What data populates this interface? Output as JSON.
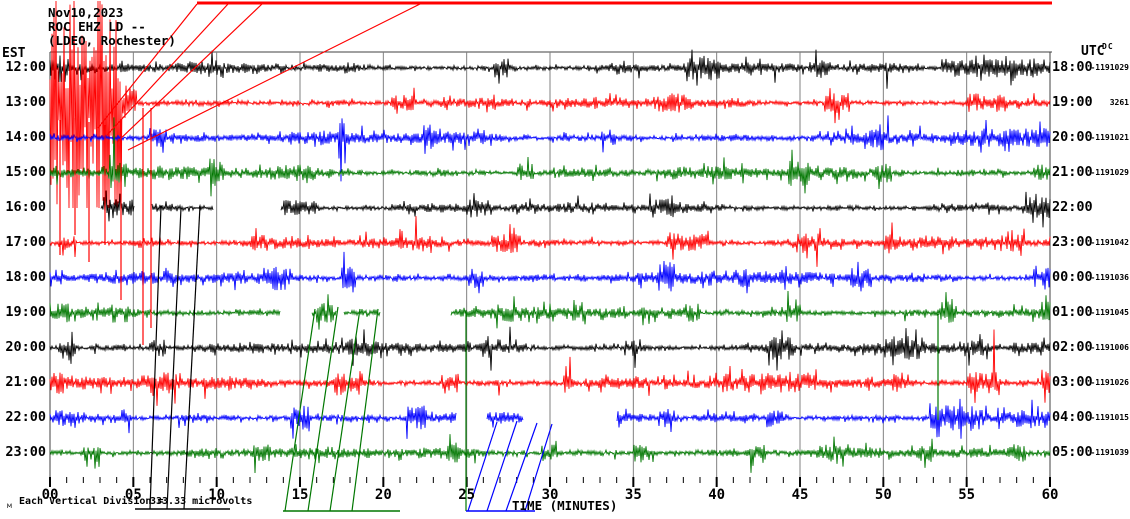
{
  "header": {
    "date": "Nov10,2023",
    "station_line": "ROC EHZ LD --",
    "network_line": "(LDEO, Rochester)"
  },
  "left_axis": {
    "timezone": "EST"
  },
  "right_axis": {
    "timezone": "UTC",
    "dc_header": "DC"
  },
  "x_axis": {
    "title": "TIME (MINUTES)",
    "major_tick_labels": [
      "00",
      "05",
      "10",
      "15",
      "20",
      "25",
      "30",
      "35",
      "40",
      "45",
      "50",
      "55",
      "60"
    ]
  },
  "footer": {
    "scale_label": "Each Vertical Division =",
    "scale_value": "333.33 microvolts",
    "watermark": "м"
  },
  "colors": {
    "black": "#000000",
    "red": "#ff0000",
    "blue": "#0000ff",
    "green": "#007700",
    "grid": "#808080",
    "border": "#404040"
  },
  "chart_data": {
    "type": "line",
    "title": "ROC EHZ LD -- helicorder, (LDEO, Rochester), Nov10,2023",
    "xlabel": "TIME (MINUTES)",
    "x_range_minutes": [
      0,
      60
    ],
    "x_major_step": 5,
    "x_minor_step": 1,
    "grid": "vertical-5min",
    "vertical_division_microvolts": "333.33",
    "rows": [
      {
        "est": "12:00",
        "utc": "18:00",
        "dc": "-1191029",
        "color": "#000000",
        "base_amp": 5,
        "bursts": [
          [
            0,
            1.3,
            15
          ],
          [
            9.5,
            10.2,
            9
          ],
          [
            26.6,
            27.6,
            10
          ],
          [
            38,
            40.2,
            12
          ],
          [
            45.8,
            46.8,
            10
          ],
          [
            53.5,
            60,
            9
          ]
        ],
        "gaps": []
      },
      {
        "est": "13:00",
        "utc": "19:00",
        "dc": "3261",
        "color": "#ff0000",
        "base_amp": 5,
        "bursts": [
          [
            4.3,
            5.2,
            18
          ],
          [
            20.5,
            22,
            8
          ],
          [
            36,
            38.5,
            9
          ],
          [
            46.5,
            48,
            11
          ],
          [
            55,
            57.5,
            9
          ]
        ],
        "gaps": [],
        "event": {
          "start_min": 0,
          "end_min": 4.3,
          "amp": 110,
          "max_below": 105,
          "clipped_at_top": true
        }
      },
      {
        "est": "14:00",
        "utc": "20:00",
        "dc": "-1191021",
        "color": "#0000ff",
        "base_amp": 6,
        "bursts": [
          [
            6,
            7,
            10
          ],
          [
            17.3,
            17.7,
            26
          ],
          [
            22.4,
            23.2,
            13
          ],
          [
            33,
            34,
            9
          ],
          [
            48.8,
            50,
            13
          ],
          [
            54,
            60,
            9
          ]
        ],
        "gaps": []
      },
      {
        "est": "15:00",
        "utc": "21:00",
        "dc": "-1191029",
        "color": "#007700",
        "base_amp": 6,
        "bursts": [
          [
            3.5,
            4.6,
            12
          ],
          [
            9.6,
            10.4,
            16
          ],
          [
            13,
            16,
            8
          ],
          [
            28,
            29,
            10
          ],
          [
            44.3,
            45.6,
            13
          ],
          [
            49.5,
            50.5,
            10
          ],
          [
            59,
            60,
            10
          ]
        ],
        "gaps": []
      },
      {
        "est": "16:00",
        "utc": "22:00",
        "dc": "",
        "color": "#000000",
        "base_amp": 5,
        "bursts": [
          [
            3.2,
            5,
            8
          ],
          [
            14,
            16,
            8
          ],
          [
            25,
            26.5,
            9
          ],
          [
            36,
            37.5,
            10
          ],
          [
            58.5,
            60,
            11
          ]
        ],
        "gaps": [
          [
            0,
            3.0
          ],
          [
            5.1,
            6.1
          ],
          [
            9.8,
            13.8
          ]
        ]
      },
      {
        "est": "17:00",
        "utc": "23:00",
        "dc": "-1191042",
        "color": "#ff0000",
        "base_amp": 5,
        "bursts": [
          [
            0.5,
            1.5,
            8
          ],
          [
            12,
            13,
            8
          ],
          [
            21,
            21.8,
            9
          ],
          [
            26.5,
            28.2,
            10
          ],
          [
            37,
            39.5,
            10
          ],
          [
            44.8,
            46.2,
            10
          ],
          [
            50,
            51,
            8
          ],
          [
            57,
            58.5,
            9
          ]
        ],
        "gaps": []
      },
      {
        "est": "18:00",
        "utc": "00:00",
        "dc": "-1191036",
        "color": "#0000ff",
        "base_amp": 6,
        "bursts": [
          [
            0,
            1,
            9
          ],
          [
            13,
            14.2,
            12
          ],
          [
            17.5,
            18.3,
            13
          ],
          [
            25,
            26,
            9
          ],
          [
            36.5,
            37.6,
            14
          ],
          [
            41,
            42,
            9
          ],
          [
            48,
            49.3,
            11
          ],
          [
            59,
            60,
            13
          ]
        ],
        "gaps": []
      },
      {
        "est": "19:00",
        "utc": "01:00",
        "dc": "-1191045",
        "color": "#007700",
        "base_amp": 6,
        "bursts": [
          [
            0,
            1.2,
            10
          ],
          [
            16,
            17,
            11
          ],
          [
            26.8,
            28,
            9
          ],
          [
            31,
            32.2,
            12
          ],
          [
            38,
            39,
            9
          ],
          [
            44,
            45,
            9
          ],
          [
            53.4,
            54.4,
            15
          ],
          [
            59.3,
            60,
            12
          ]
        ],
        "gaps": [
          [
            13.8,
            15.7
          ],
          [
            17.2,
            17.6
          ],
          [
            19.8,
            24.0
          ]
        ]
      },
      {
        "est": "20:00",
        "utc": "02:00",
        "dc": "-1191006",
        "color": "#000000",
        "base_amp": 6,
        "bursts": [
          [
            0.5,
            1.5,
            9
          ],
          [
            6,
            7,
            9
          ],
          [
            18,
            19.2,
            10
          ],
          [
            25.5,
            27,
            10
          ],
          [
            34.5,
            35.5,
            9
          ],
          [
            43,
            44.6,
            12
          ],
          [
            50,
            52,
            12
          ],
          [
            55,
            56,
            9
          ]
        ],
        "gaps": []
      },
      {
        "est": "21:00",
        "utc": "03:00",
        "dc": "-1191026",
        "color": "#ff0000",
        "base_amp": 6,
        "bursts": [
          [
            0,
            0.8,
            12
          ],
          [
            6,
            7.6,
            12
          ],
          [
            17,
            18.6,
            12
          ],
          [
            23.5,
            24.5,
            10
          ],
          [
            30.8,
            31.4,
            15
          ],
          [
            40,
            46,
            10
          ],
          [
            50.5,
            51.5,
            9
          ],
          [
            55,
            57,
            12
          ],
          [
            59.5,
            60,
            14
          ]
        ],
        "gaps": []
      },
      {
        "est": "22:00",
        "utc": "04:00",
        "dc": "-1191015",
        "color": "#0000ff",
        "base_amp": 6,
        "bursts": [
          [
            0.3,
            1,
            9
          ],
          [
            4.3,
            4.9,
            10
          ],
          [
            14.4,
            15.6,
            12
          ],
          [
            21.4,
            22.6,
            12
          ],
          [
            36.5,
            37.5,
            9
          ],
          [
            43,
            44,
            9
          ],
          [
            52.8,
            56.2,
            13
          ],
          [
            58,
            60,
            10
          ]
        ],
        "gaps": [
          [
            24.4,
            26.2
          ],
          [
            28.4,
            34.0
          ]
        ]
      },
      {
        "est": "23:00",
        "utc": "05:00",
        "dc": "-1191039",
        "color": "#007700",
        "base_amp": 5,
        "bursts": [
          [
            2,
            3,
            8
          ],
          [
            12,
            13.2,
            9
          ],
          [
            23.8,
            24.6,
            10
          ],
          [
            29.5,
            30.5,
            8
          ],
          [
            35,
            36.2,
            10
          ],
          [
            42,
            43,
            8
          ],
          [
            46,
            48,
            9
          ],
          [
            52,
            53,
            8
          ],
          [
            57.5,
            58.6,
            9
          ]
        ],
        "gaps": []
      }
    ],
    "overlays": [
      {
        "name": "red-clip-line-top",
        "color": "#ff0000",
        "w": 3,
        "pts": [
          [
            197,
            3
          ],
          [
            1052,
            3
          ]
        ]
      },
      {
        "name": "red-clip-diagonal-1",
        "color": "#ff0000",
        "w": 1.2,
        "pts": [
          [
            98,
            128
          ],
          [
            197,
            4
          ]
        ]
      },
      {
        "name": "red-clip-diagonal-2",
        "color": "#ff0000",
        "w": 1.2,
        "pts": [
          [
            107,
            135
          ],
          [
            228,
            4
          ]
        ]
      },
      {
        "name": "red-clip-diagonal-3",
        "color": "#ff0000",
        "w": 1.2,
        "pts": [
          [
            117,
            142
          ],
          [
            262,
            4
          ]
        ]
      },
      {
        "name": "red-clip-diagonal-4",
        "color": "#ff0000",
        "w": 1.2,
        "pts": [
          [
            128,
            150
          ],
          [
            420,
            4
          ]
        ]
      },
      {
        "name": "red-deep-spike-1",
        "color": "#ff0000",
        "w": 1.2,
        "pts": [
          [
            60,
            120
          ],
          [
            60,
            255
          ]
        ]
      },
      {
        "name": "red-deep-spike-2",
        "color": "#ff0000",
        "w": 1.2,
        "pts": [
          [
            75,
            118
          ],
          [
            75,
            235
          ]
        ]
      },
      {
        "name": "red-deep-spike-3",
        "color": "#ff0000",
        "w": 1.2,
        "pts": [
          [
            89,
            122
          ],
          [
            89,
            262
          ]
        ]
      },
      {
        "name": "red-deep-spike-4",
        "color": "#ff0000",
        "w": 1.2,
        "pts": [
          [
            105,
            125
          ],
          [
            105,
            245
          ]
        ]
      },
      {
        "name": "red-deep-spike-5",
        "color": "#ff0000",
        "w": 1.2,
        "pts": [
          [
            121,
            120
          ],
          [
            121,
            300
          ]
        ]
      },
      {
        "name": "red-deep-spike-6",
        "color": "#ff0000",
        "w": 1.2,
        "pts": [
          [
            143,
            108
          ],
          [
            143,
            345
          ]
        ]
      },
      {
        "name": "red-deep-spike-7",
        "color": "#ff0000",
        "w": 1.2,
        "pts": [
          [
            151,
            108
          ],
          [
            151,
            328
          ]
        ]
      },
      {
        "name": "black-glitch-line-1",
        "color": "#000000",
        "w": 1.2,
        "pts": [
          [
            161,
            206
          ],
          [
            150,
            509
          ]
        ]
      },
      {
        "name": "black-glitch-line-2",
        "color": "#000000",
        "w": 1.2,
        "pts": [
          [
            181,
            208
          ],
          [
            167,
            509
          ]
        ]
      },
      {
        "name": "black-glitch-line-3",
        "color": "#000000",
        "w": 1.2,
        "pts": [
          [
            200,
            206
          ],
          [
            184,
            509
          ]
        ]
      },
      {
        "name": "black-clip-line-bottom",
        "color": "#000000",
        "w": 1.5,
        "pts": [
          [
            135,
            509
          ],
          [
            230,
            509
          ]
        ]
      },
      {
        "name": "green-glitch-diagonal-1",
        "color": "#007700",
        "w": 1.2,
        "pts": [
          [
            315,
            309
          ],
          [
            285,
            511
          ]
        ]
      },
      {
        "name": "green-glitch-diagonal-2",
        "color": "#007700",
        "w": 1.2,
        "pts": [
          [
            338,
            307
          ],
          [
            308,
            511
          ]
        ]
      },
      {
        "name": "green-glitch-diagonal-3",
        "color": "#007700",
        "w": 1.2,
        "pts": [
          [
            360,
            309
          ],
          [
            330,
            511
          ]
        ]
      },
      {
        "name": "green-glitch-diagonal-4",
        "color": "#007700",
        "w": 1.2,
        "pts": [
          [
            378,
            309
          ],
          [
            352,
            511
          ]
        ]
      },
      {
        "name": "green-glitch-vertical",
        "color": "#007700",
        "w": 1.2,
        "pts": [
          [
            466,
            312
          ],
          [
            466,
            511
          ]
        ]
      },
      {
        "name": "green-clip-line-bottom",
        "color": "#007700",
        "w": 1.5,
        "pts": [
          [
            283,
            511
          ],
          [
            400,
            511
          ]
        ]
      },
      {
        "name": "green-deep-spike",
        "color": "#007700",
        "w": 1.2,
        "pts": [
          [
            938,
            314
          ],
          [
            938,
            420
          ]
        ]
      },
      {
        "name": "blue-glitch-diagonal-1",
        "color": "#0000ff",
        "w": 1.2,
        "pts": [
          [
            497,
            422
          ],
          [
            468,
            511
          ]
        ]
      },
      {
        "name": "blue-glitch-diagonal-2",
        "color": "#0000ff",
        "w": 1.2,
        "pts": [
          [
            517,
            421
          ],
          [
            487,
            511
          ]
        ]
      },
      {
        "name": "blue-glitch-diagonal-3",
        "color": "#0000ff",
        "w": 1.2,
        "pts": [
          [
            537,
            423
          ],
          [
            506,
            511
          ]
        ]
      },
      {
        "name": "blue-glitch-diagonal-4",
        "color": "#0000ff",
        "w": 1.2,
        "pts": [
          [
            552,
            424
          ],
          [
            525,
            511
          ]
        ]
      },
      {
        "name": "blue-clip-line-bottom",
        "color": "#0000ff",
        "w": 1.5,
        "pts": [
          [
            466,
            511
          ],
          [
            535,
            511
          ]
        ]
      }
    ]
  }
}
